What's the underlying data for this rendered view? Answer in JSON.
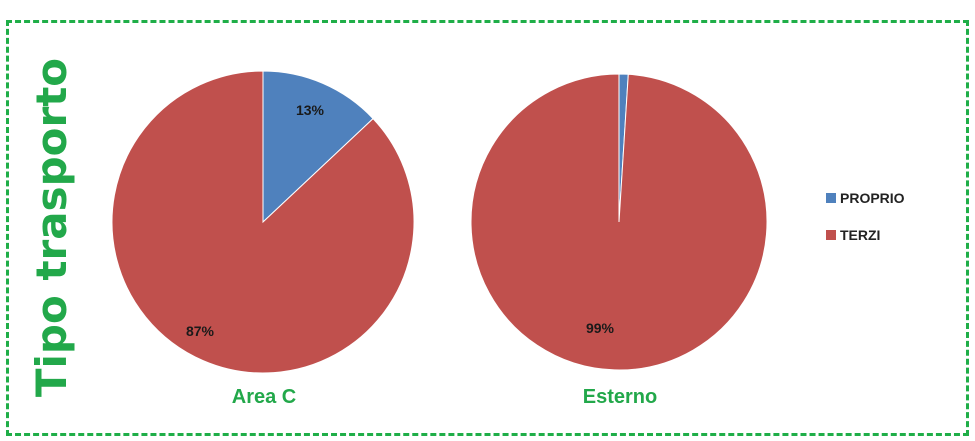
{
  "chart_data": [
    {
      "type": "pie",
      "label": "Area C",
      "slices": [
        {
          "name": "PROPRIO",
          "value": 13,
          "label": "13%",
          "color": "#4f81bd"
        },
        {
          "name": "TERZI",
          "value": 87,
          "label": "87%",
          "color": "#c0504d"
        }
      ]
    },
    {
      "type": "pie",
      "label": "Esterno",
      "slices": [
        {
          "name": "PROPRIO",
          "value": 1,
          "label": "",
          "color": "#4f81bd"
        },
        {
          "name": "TERZI",
          "value": 99,
          "label": "99%",
          "color": "#c0504d"
        }
      ]
    }
  ],
  "side_title": "Tipo trasporto",
  "legend": [
    {
      "label": "PROPRIO",
      "color": "#4f81bd"
    },
    {
      "label": "TERZI",
      "color": "#c0504d"
    }
  ],
  "frame_color": "#1fae48",
  "title_color": "#22a84a"
}
